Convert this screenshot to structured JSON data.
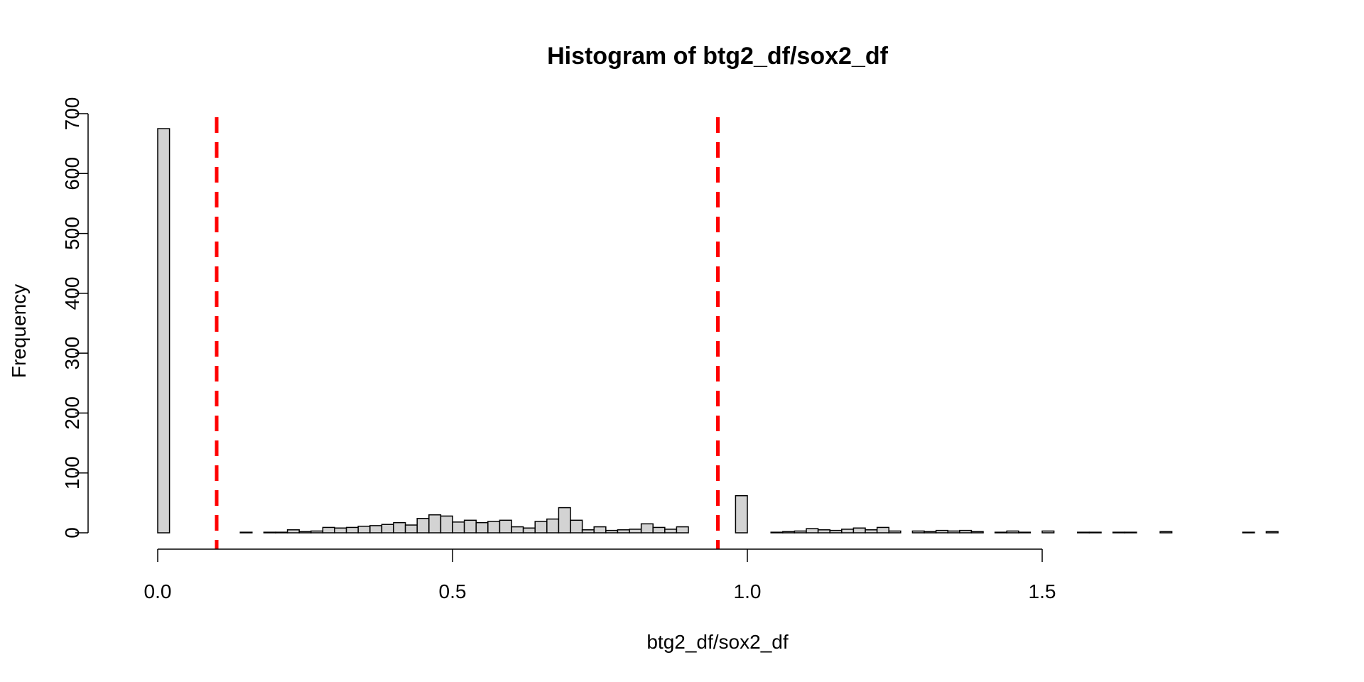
{
  "chart_data": {
    "type": "bar",
    "title": "Histogram of btg2_df/sox2_df",
    "xlabel": "btg2_df/sox2_df",
    "ylabel": "Frequency",
    "xlim": [
      0,
      1.9
    ],
    "ylim": [
      0,
      700
    ],
    "x_ticks": [
      0.0,
      0.5,
      1.0,
      1.5
    ],
    "x_tick_labels": [
      "0.0",
      "0.5",
      "1.0",
      "1.5"
    ],
    "y_ticks": [
      0,
      100,
      200,
      300,
      400,
      500,
      600,
      700
    ],
    "y_tick_labels": [
      "0",
      "100",
      "200",
      "300",
      "400",
      "500",
      "600",
      "700"
    ],
    "bin_width": 0.02,
    "bin_starts": [
      0.0,
      0.02,
      0.04,
      0.06,
      0.08,
      0.1,
      0.12,
      0.14,
      0.16,
      0.18,
      0.2,
      0.22,
      0.24,
      0.26,
      0.28,
      0.3,
      0.32,
      0.34,
      0.36,
      0.38,
      0.4,
      0.42,
      0.44,
      0.46,
      0.48,
      0.5,
      0.52,
      0.54,
      0.56,
      0.58,
      0.6,
      0.62,
      0.64,
      0.66,
      0.68,
      0.7,
      0.72,
      0.74,
      0.76,
      0.78,
      0.8,
      0.82,
      0.84,
      0.86,
      0.88,
      0.9,
      0.92,
      0.94,
      0.96,
      0.98,
      1.0,
      1.02,
      1.04,
      1.06,
      1.08,
      1.1,
      1.12,
      1.14,
      1.16,
      1.18,
      1.2,
      1.22,
      1.24,
      1.26,
      1.28,
      1.3,
      1.32,
      1.34,
      1.36,
      1.38,
      1.4,
      1.42,
      1.44,
      1.46,
      1.48,
      1.5,
      1.52,
      1.54,
      1.56,
      1.58,
      1.6,
      1.62,
      1.64,
      1.66,
      1.68,
      1.7,
      1.72,
      1.74,
      1.76,
      1.78,
      1.8,
      1.82,
      1.84,
      1.86,
      1.88
    ],
    "values": [
      675,
      0,
      0,
      0,
      0,
      0,
      0,
      1,
      0,
      1,
      1,
      5,
      2,
      3,
      9,
      8,
      9,
      11,
      12,
      14,
      17,
      13,
      24,
      30,
      28,
      18,
      21,
      17,
      19,
      21,
      10,
      8,
      19,
      23,
      42,
      21,
      5,
      10,
      4,
      5,
      6,
      15,
      9,
      6,
      10,
      0,
      0,
      0,
      0,
      62,
      0,
      0,
      1,
      2,
      3,
      7,
      5,
      4,
      6,
      8,
      5,
      9,
      3,
      0,
      3,
      2,
      4,
      3,
      4,
      2,
      0,
      1,
      3,
      1,
      0,
      3,
      0,
      0,
      1,
      1,
      0,
      1,
      1,
      0,
      0,
      2,
      0,
      0,
      0,
      0,
      0,
      0,
      1,
      0,
      2
    ],
    "vlines": [
      0.1,
      0.95
    ],
    "colors": {
      "bar_fill": "#d3d3d3",
      "bar_stroke": "#000000",
      "vline": "#ff0000"
    },
    "grid": false
  }
}
